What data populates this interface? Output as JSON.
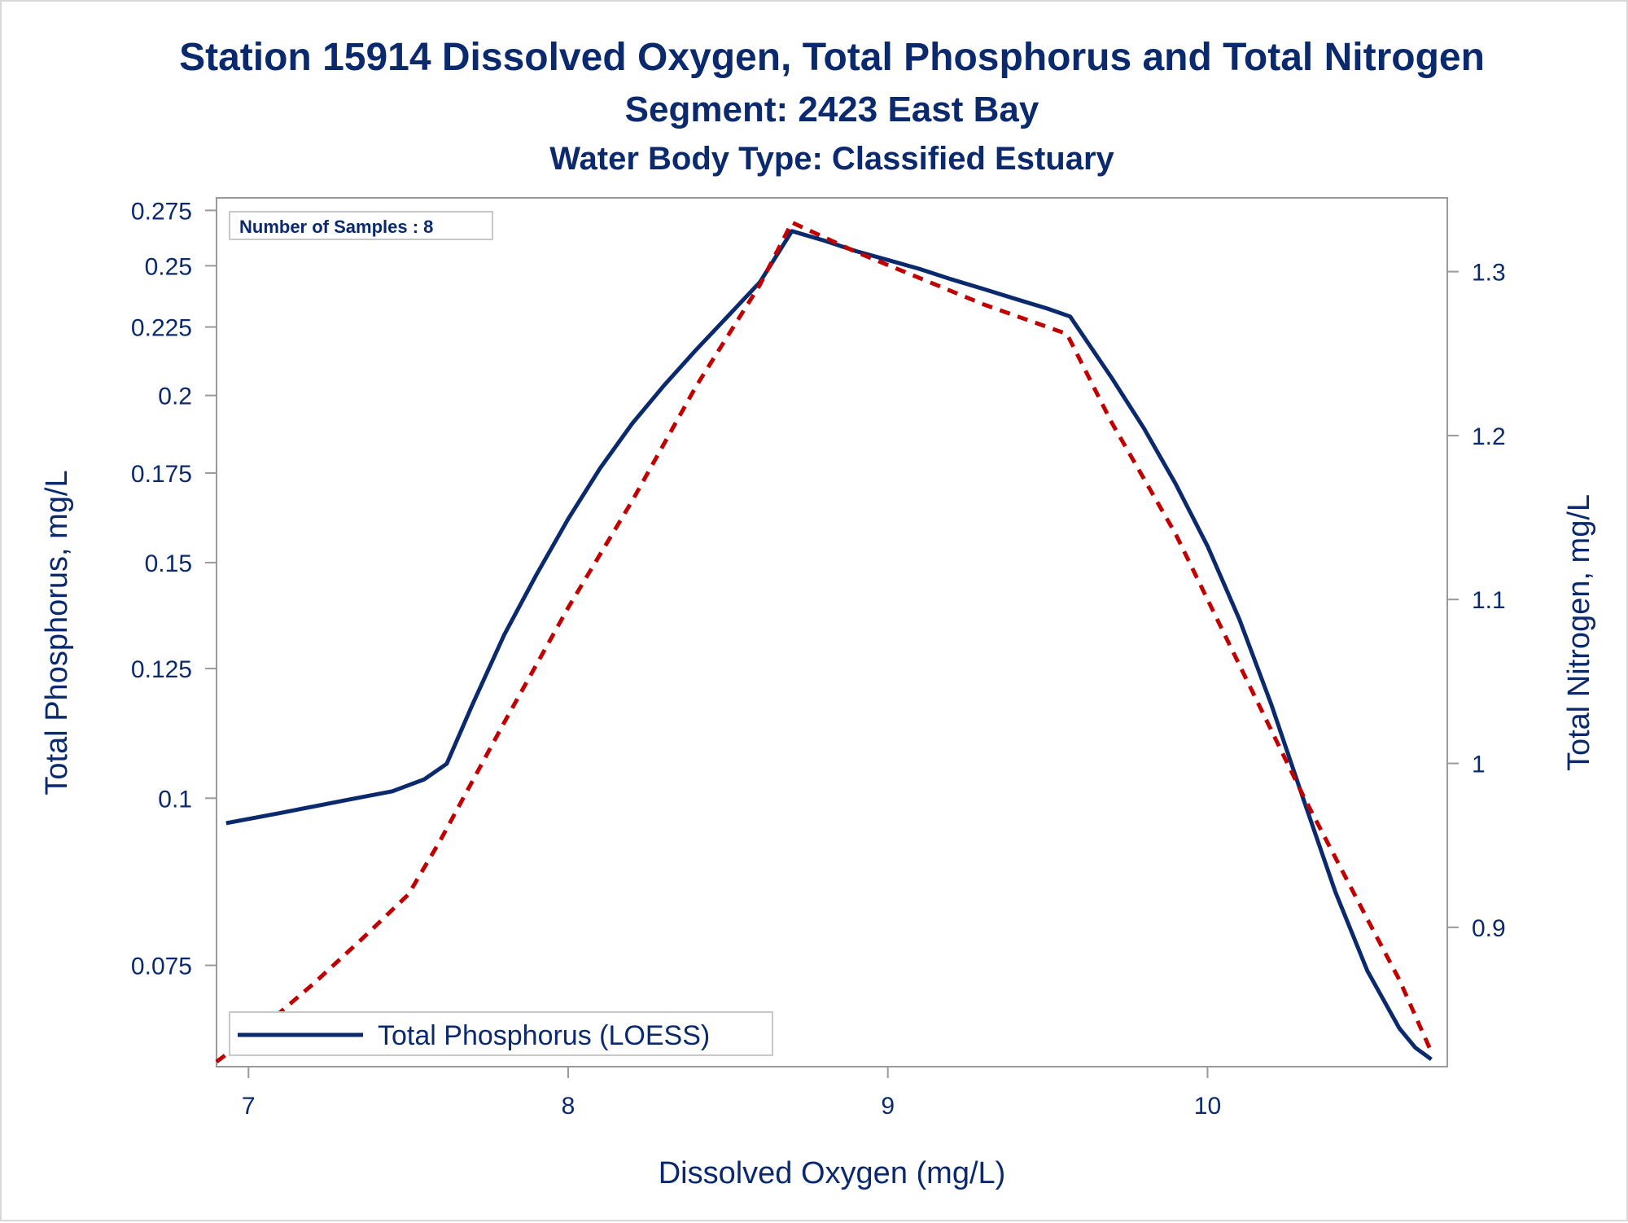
{
  "chart_data": {
    "type": "line",
    "title": "Station 15914  Dissolved Oxygen, Total Phosphorus and Total Nitrogen",
    "subtitle": "Segment: 2423  East Bay",
    "subtitle2": "Water Body Type: Classified Estuary",
    "xlabel": "Dissolved Oxygen (mg/L)",
    "ylabel": "Total Phosphorus, mg/L",
    "y2label": "Total Nitrogen, mg/L",
    "xlim": [
      6.9,
      10.75
    ],
    "ylim": [
      0.063,
      0.281
    ],
    "y2lim": [
      0.815,
      1.345
    ],
    "y_scale": "log",
    "x_ticks": [
      "7",
      "8",
      "9",
      "10"
    ],
    "y_ticks": [
      "0.075",
      "0.1",
      "0.125",
      "0.15",
      "0.175",
      "0.2",
      "0.225",
      "0.25",
      "0.275"
    ],
    "y2_ticks": [
      "0.9",
      "1",
      "1.1",
      "1.2",
      "1.3"
    ],
    "annotation": "Number of Samples : 8",
    "legend_position": "bottom-left",
    "grid": false,
    "series": [
      {
        "name": "Total Phosphorus (LOESS)",
        "axis": "left",
        "color": "#0b2a6e",
        "style": "solid",
        "x": [
          6.93,
          7.1,
          7.3,
          7.45,
          7.55,
          7.62,
          7.7,
          7.8,
          7.9,
          8.0,
          8.1,
          8.2,
          8.3,
          8.4,
          8.5,
          8.6,
          8.7,
          8.8,
          8.9,
          9.0,
          9.1,
          9.2,
          9.3,
          9.4,
          9.5,
          9.57,
          9.7,
          9.8,
          9.9,
          10.0,
          10.1,
          10.2,
          10.3,
          10.4,
          10.5,
          10.6,
          10.65,
          10.7
        ],
        "y": [
          0.0958,
          0.0975,
          0.0996,
          0.1012,
          0.1033,
          0.1061,
          0.1174,
          0.1325,
          0.1468,
          0.1617,
          0.1765,
          0.1905,
          0.2035,
          0.2163,
          0.2293,
          0.2431,
          0.2654,
          0.2611,
          0.2564,
          0.2525,
          0.2486,
          0.2442,
          0.2402,
          0.2361,
          0.2322,
          0.2291,
          0.2062,
          0.1892,
          0.1718,
          0.1543,
          0.136,
          0.1174,
          0.0998,
          0.0851,
          0.0743,
          0.0673,
          0.0651,
          0.0638
        ]
      },
      {
        "name": "Total Nitrogen",
        "axis": "right",
        "color": "#c00000",
        "style": "dashed",
        "x": [
          6.9,
          7.05,
          7.2,
          7.35,
          7.5,
          7.6,
          7.8,
          8.0,
          8.2,
          8.4,
          8.6,
          8.7,
          8.9,
          9.1,
          9.3,
          9.56,
          9.7,
          9.9,
          10.1,
          10.3,
          10.5,
          10.6,
          10.7
        ],
        "y": [
          0.818,
          0.84,
          0.865,
          0.892,
          0.92,
          0.953,
          1.025,
          1.095,
          1.16,
          1.23,
          1.292,
          1.33,
          1.312,
          1.296,
          1.28,
          1.262,
          1.208,
          1.14,
          1.06,
          0.98,
          0.905,
          0.868,
          0.824
        ]
      }
    ]
  }
}
